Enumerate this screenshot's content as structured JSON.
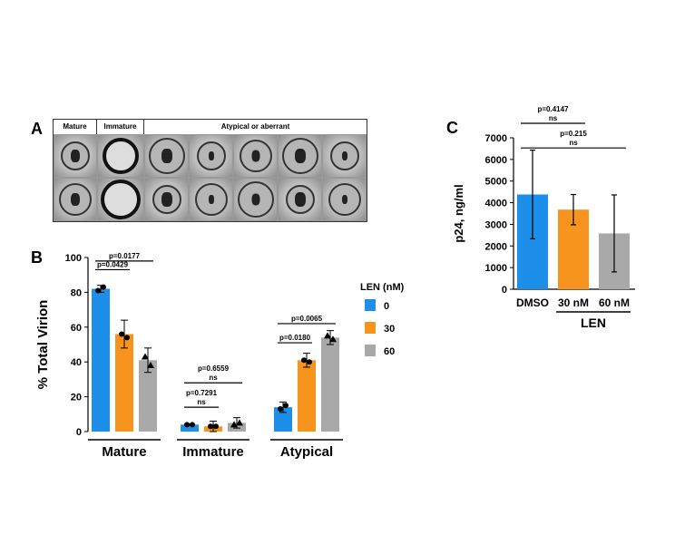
{
  "panels": {
    "a_label": "A",
    "b_label": "B",
    "c_label": "C"
  },
  "micrographs": {
    "headers": [
      "Mature",
      "Immature",
      "Atypical or aberrant"
    ],
    "rows": 2,
    "mature_cols": 1,
    "immature_cols": 1,
    "atypical_cols": 5
  },
  "colors": {
    "blue": "#1e8fe8",
    "orange": "#f7941d",
    "gray": "#a9a9a9"
  },
  "chart_data": [
    {
      "type": "bar",
      "panel": "B",
      "categories": [
        "Mature",
        "Immature",
        "Atypical"
      ],
      "legend_title": "LEN (nM)",
      "series": [
        {
          "name": "0",
          "values": [
            82,
            4,
            14
          ],
          "errors": [
            2,
            0.5,
            3
          ],
          "points": [
            [
              81,
              83
            ],
            [
              4,
              4
            ],
            [
              13,
              15
            ]
          ]
        },
        {
          "name": "30",
          "values": [
            56,
            3,
            41
          ],
          "errors": [
            8,
            3,
            4
          ],
          "points": [
            [
              56,
              54
            ],
            [
              3,
              3
            ],
            [
              41,
              40
            ]
          ]
        },
        {
          "name": "60",
          "values": [
            41,
            5,
            54
          ],
          "errors": [
            7,
            3,
            4
          ],
          "points": [
            [
              43,
              38
            ],
            [
              4,
              5
            ],
            [
              55,
              53
            ]
          ]
        }
      ],
      "ylabel": "% Total Virion",
      "ylim": [
        0,
        100
      ],
      "yticks": [
        0,
        20,
        40,
        60,
        80,
        100
      ],
      "annotations": [
        {
          "text": "p=0.0429",
          "group": 0,
          "from": 0,
          "to": 1,
          "level": 93
        },
        {
          "text": "p=0.0177",
          "group": 0,
          "from": 0,
          "to": 2,
          "level": 98
        },
        {
          "text": "p=0.7291",
          "sub": "ns",
          "group": 1,
          "from": 0,
          "to": 1,
          "level": 14
        },
        {
          "text": "p=0.6559",
          "sub": "ns",
          "group": 1,
          "from": 0,
          "to": 2,
          "level": 28
        },
        {
          "text": "p=0.0180",
          "group": 2,
          "from": 0,
          "to": 1,
          "level": 51
        },
        {
          "text": "p=0.0065",
          "group": 2,
          "from": 0,
          "to": 2,
          "level": 62
        }
      ]
    },
    {
      "type": "bar",
      "panel": "C",
      "categories": [
        "DMSO",
        "30 nM",
        "60 nM"
      ],
      "group_label": "LEN",
      "values": [
        4380,
        3680,
        2580
      ],
      "errors": [
        2050,
        700,
        1780
      ],
      "ylabel": "p24, ng/ml",
      "ylim": [
        0,
        7000
      ],
      "yticks": [
        0,
        1000,
        2000,
        3000,
        4000,
        5000,
        6000,
        7000
      ],
      "annotations": [
        {
          "text": "p=0.4147",
          "sub": "ns",
          "from": 0,
          "to": 1,
          "level": 7950
        },
        {
          "text": "p=0.215",
          "sub": "ns",
          "from": 0,
          "to": 2,
          "level": 6950
        }
      ]
    }
  ]
}
